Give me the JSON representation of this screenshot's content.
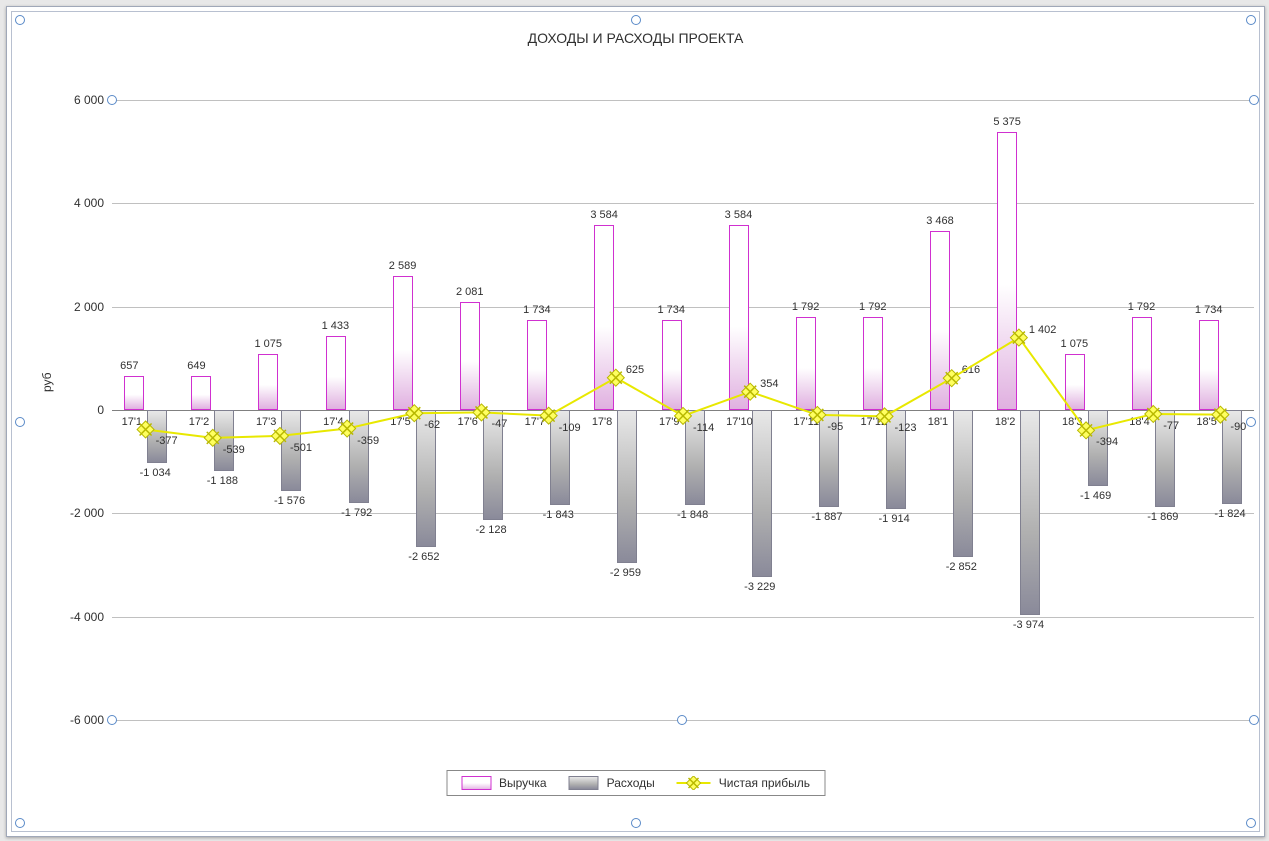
{
  "chart": {
    "title": "ДОХОДЫ И РАСХОДЫ ПРОЕКТА",
    "y_axis_title": "руб",
    "type": "bar+line",
    "background_color": "#ffffff",
    "grid_color_major": "#c0c0c0",
    "grid_color_zero": "#808080",
    "ylim": [
      -6000,
      6000
    ],
    "ytick_step": 2000,
    "yticks": [
      {
        "v": 6000,
        "label": "6 000"
      },
      {
        "v": 4000,
        "label": "4 000"
      },
      {
        "v": 2000,
        "label": "2 000"
      },
      {
        "v": 0,
        "label": "0"
      },
      {
        "v": -2000,
        "label": "-2 000"
      },
      {
        "v": -4000,
        "label": "-4 000"
      },
      {
        "v": -6000,
        "label": "-6 000"
      }
    ],
    "categories": [
      "17'1",
      "17'2",
      "17'3",
      "17'4",
      "17'5",
      "17'6",
      "17'7",
      "17'8",
      "17'9",
      "17'10",
      "17'11",
      "17'12",
      "18'1",
      "18'2",
      "18'3",
      "18'4",
      "18'5"
    ],
    "series": {
      "revenue": {
        "label": "Выручка",
        "color_border": "#d030d0",
        "values": [
          657,
          649,
          1075,
          1433,
          2589,
          2081,
          1734,
          3584,
          1734,
          3584,
          1792,
          1792,
          3468,
          5375,
          1075,
          1792,
          1734
        ],
        "value_labels": [
          "657",
          "649",
          "1 075",
          "1 433",
          "2 589",
          "2 081",
          "1 734",
          "3 584",
          "1 734",
          "3 584",
          "1 792",
          "1 792",
          "3 468",
          "5 375",
          "1 075",
          "1 792",
          "1 734"
        ]
      },
      "expenses": {
        "label": "Расходы",
        "color_border": "#808090",
        "values": [
          -1034,
          -1188,
          -1576,
          -1792,
          -2652,
          -2128,
          -1843,
          -2959,
          -1848,
          -3229,
          -1887,
          -1914,
          -2852,
          -3974,
          -1469,
          -1869,
          -1824
        ],
        "value_labels": [
          "-1 034",
          "-1 188",
          "-1 576",
          "-1 792",
          "-2 652",
          "-2 128",
          "-1 843",
          "-2 959",
          "-1 848",
          "-3 229",
          "-1 887",
          "-1 914",
          "-2 852",
          "-3 974",
          "-1 469",
          "-1 869",
          "-1 824"
        ]
      },
      "profit": {
        "label": "Чистая прибыль",
        "line_color": "#e8e800",
        "marker_border": "#b8b800",
        "marker_fill": "#ffff60",
        "values": [
          -377,
          -539,
          -501,
          -359,
          -62,
          -47,
          -109,
          625,
          -114,
          354,
          -95,
          -123,
          616,
          1402,
          -394,
          -77,
          -90
        ],
        "value_labels": [
          "-377",
          "-539",
          "-501",
          "-359",
          "-62",
          "-47",
          "-109",
          "625",
          "-114",
          "354",
          "-95",
          "-123",
          "616",
          "1 402",
          "-394",
          "-77",
          "-90"
        ]
      }
    },
    "legend": {
      "revenue": "Выручка",
      "expenses": "Расходы",
      "profit": "Чистая прибыль"
    }
  }
}
